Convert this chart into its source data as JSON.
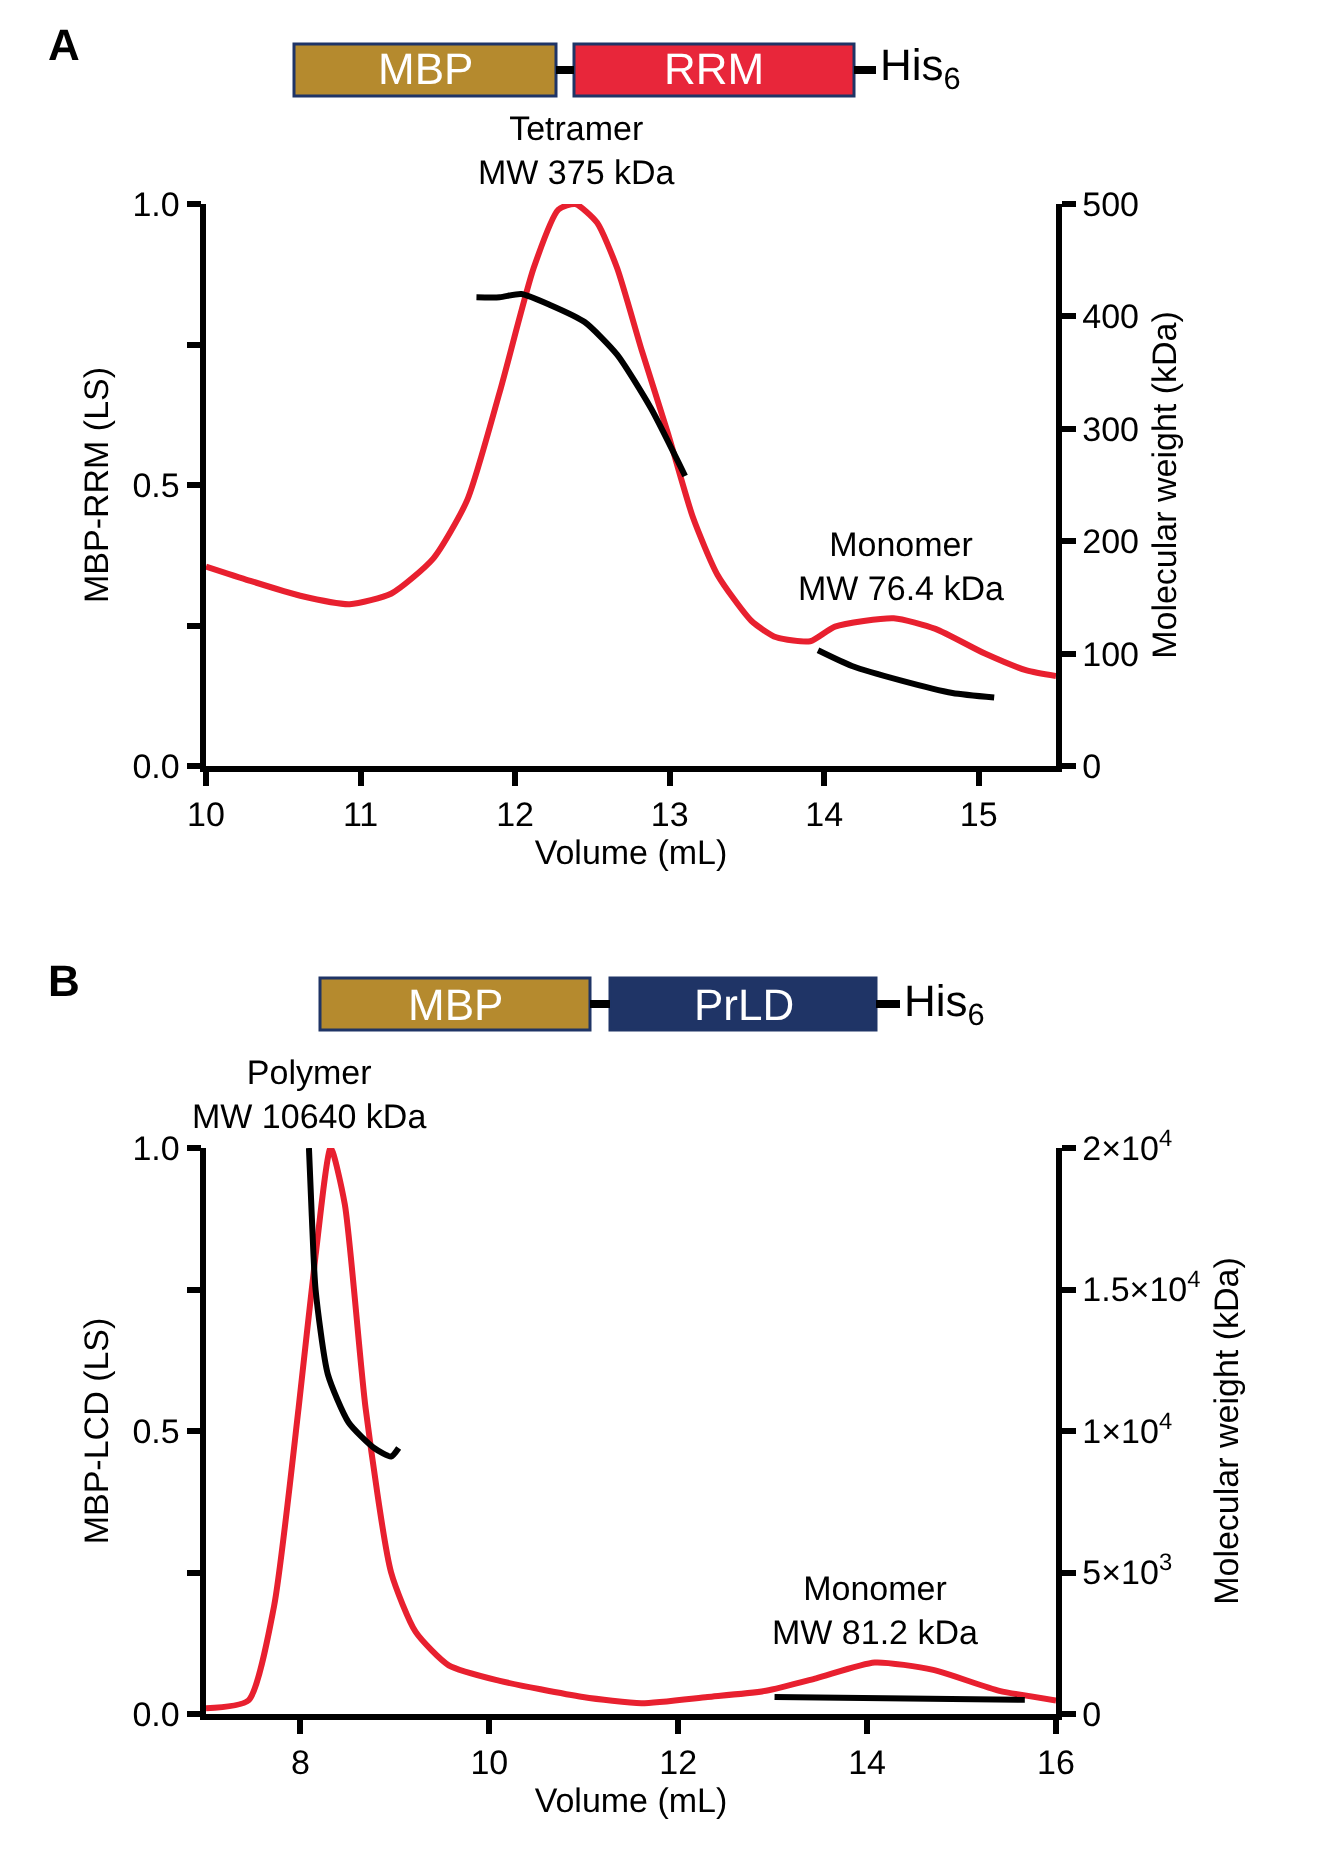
{
  "chart_data": [
    {
      "type": "line",
      "xlabel": "Volume (mL)",
      "ylabel": "MBP-RRM (LS)",
      "y2label": "Molecular weight (kDa)",
      "annotations": [
        "A",
        "MBP",
        "RRM",
        "His$_{6}$",
        {
          "text": "Tetramer\nMW 375 kDa",
          "x": 12.4,
          "y": 1.0
        },
        {
          "text": "Monomer\nMW 76.4 kDa",
          "x": 14.5,
          "y": 0.26
        }
      ],
      "series": [
        {
          "color": "#e8202f",
          "x": [
            10,
            10.28,
            10.61,
            10.93,
            11.2,
            11.47,
            11.69,
            11.9,
            12.12,
            12.28,
            12.39,
            12.53,
            12.66,
            12.82,
            12.99,
            13.15,
            13.31,
            13.53,
            13.69,
            13.91,
            14.07,
            14.45,
            14.72,
            15.04,
            15.31,
            15.5
          ],
          "values": [
            0.355,
            0.33,
            0.303,
            0.288,
            0.307,
            0.369,
            0.473,
            0.665,
            0.886,
            0.99,
            1.0,
            0.967,
            0.886,
            0.739,
            0.591,
            0.443,
            0.34,
            0.258,
            0.229,
            0.222,
            0.248,
            0.263,
            0.244,
            0.2,
            0.17,
            0.16
          ]
        },
        {
          "color": "#000000",
          "axis": "y2",
          "x": [
            11.75,
            11.9,
            12.04,
            12.23,
            12.45,
            12.66,
            12.88,
            13.1
          ],
          "values": [
            417,
            417,
            420,
            410,
            395,
            366,
            318,
            258
          ]
        },
        {
          "color": "#000000",
          "axis": "y2",
          "x": [
            13.96,
            14.18,
            14.5,
            14.83,
            15.1
          ],
          "values": [
            103,
            89,
            76,
            65,
            61
          ]
        }
      ],
      "xlim": [
        10,
        15.5
      ],
      "xticks": [
        10,
        11,
        12,
        13,
        14,
        15
      ],
      "ylim": [
        0,
        1
      ],
      "yticks": [
        {
          "value": 0,
          "label": "0.0"
        },
        {
          "value": 0.25,
          "label": null
        },
        {
          "value": 0.5,
          "label": "0.5"
        },
        {
          "value": 0.75,
          "label": null
        },
        {
          "value": 1,
          "label": "1.0"
        }
      ],
      "y2lim": [
        0,
        500
      ],
      "y2ticks": [
        0,
        100,
        200,
        300,
        400,
        500
      ]
    },
    {
      "type": "line",
      "xlabel": "Volume (mL)",
      "ylabel": "MBP-LCD (LS)",
      "y2label": "Molecular weight (kDa)",
      "annotations": [
        "B",
        "MBP",
        "PrLD",
        "His$_{6}$",
        {
          "text": "Polymer\nMW 10640 kDa",
          "x": 8.1,
          "y": 1.0
        },
        {
          "text": "Monomer\nMW 81.2 kDa",
          "x": 14.1,
          "y": 0.09
        }
      ],
      "series": [
        {
          "color": "#e8202f",
          "x": [
            7,
            7.45,
            7.72,
            7.98,
            8.16,
            8.32,
            8.47,
            8.69,
            8.96,
            9.22,
            9.57,
            10.1,
            10.99,
            11.61,
            12.31,
            12.93,
            13.46,
            14.08,
            14.7,
            15.4,
            16
          ],
          "values": [
            0.01,
            0.024,
            0.19,
            0.54,
            0.81,
            1.0,
            0.9,
            0.54,
            0.25,
            0.145,
            0.086,
            0.059,
            0.03,
            0.019,
            0.03,
            0.041,
            0.063,
            0.091,
            0.078,
            0.041,
            0.024
          ]
        },
        {
          "color": "#000000",
          "axis": "y2",
          "x": [
            8.09,
            8.12,
            8.16,
            8.29,
            8.51,
            8.78,
            8.96,
            9.04
          ],
          "values": [
            20000,
            17600,
            15000,
            12000,
            10300,
            9400,
            9100,
            9400
          ]
        },
        {
          "color": "#000000",
          "axis": "y2",
          "x": [
            13.02,
            15.67
          ],
          "values": [
            600,
            500
          ]
        }
      ],
      "xlim": [
        7,
        16
      ],
      "xticks": [
        8,
        10,
        12,
        14,
        16
      ],
      "ylim": [
        0,
        1
      ],
      "yticks": [
        {
          "value": 0,
          "label": "0.0"
        },
        {
          "value": 0.25,
          "label": null
        },
        {
          "value": 0.5,
          "label": "0.5"
        },
        {
          "value": 0.75,
          "label": null
        },
        {
          "value": 1,
          "label": "1.0"
        }
      ],
      "y2lim": [
        0,
        20000
      ],
      "y2ticks": [
        0,
        {
          "value": 5000,
          "label": "5×10$^{3}$"
        },
        {
          "value": 10000,
          "label": "1×10$^{4}$"
        },
        {
          "value": 15000,
          "label": "1.5×10$^{4}$"
        },
        {
          "value": 20000,
          "label": "2×10$^{4}$"
        }
      ]
    }
  ]
}
